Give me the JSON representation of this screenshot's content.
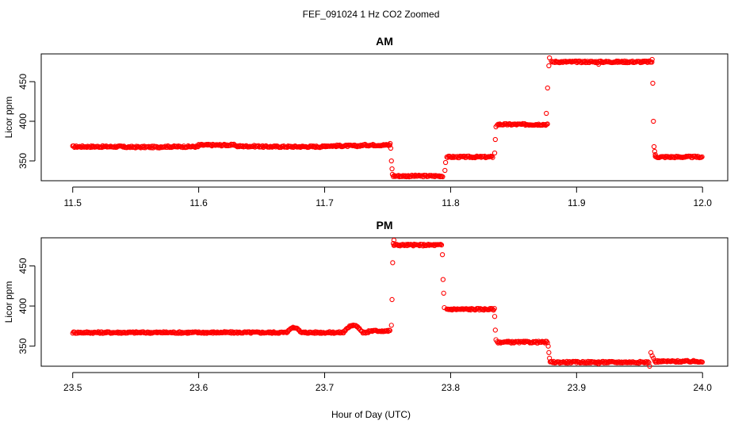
{
  "figure_title": "FEF_091024  1 Hz CO2 Zoomed",
  "xlabel": "Hour of Day (UTC)",
  "marker_color": "#ff0000",
  "chart_data": [
    {
      "type": "scatter",
      "title": "AM",
      "ylabel": "Licor ppm",
      "xlim": [
        11.475,
        12.02
      ],
      "ylim": [
        325,
        485
      ],
      "xticks": [
        "11.5",
        "11.6",
        "11.7",
        "11.8",
        "11.9",
        "12.0"
      ],
      "yticks": [
        "350",
        "400",
        "450"
      ],
      "segments": [
        {
          "x": [
            11.5,
            11.54
          ],
          "y": 368
        },
        {
          "x": [
            11.54,
            11.57
          ],
          "y": 367.5
        },
        {
          "x": [
            11.57,
            11.6
          ],
          "y": 368
        },
        {
          "x": [
            11.6,
            11.63
          ],
          "y": 370
        },
        {
          "x": [
            11.63,
            11.65
          ],
          "y": 368.5
        },
        {
          "x": [
            11.65,
            11.7
          ],
          "y": 368
        },
        {
          "x": [
            11.7,
            11.73
          ],
          "y": 369
        },
        {
          "x": [
            11.73,
            11.752
          ],
          "y": 370
        },
        {
          "x": [
            11.7545,
            11.794
          ],
          "y": 331
        },
        {
          "x": [
            11.797,
            11.834
          ],
          "y": 355
        },
        {
          "x": [
            11.837,
            11.877
          ],
          "y": 396
        },
        {
          "x": [
            11.88,
            11.96
          ],
          "y": 475
        },
        {
          "x": [
            11.9625,
            12.0
          ],
          "y": 355
        }
      ],
      "transitions": [
        [
          11.752,
          372
        ],
        [
          11.7525,
          366
        ],
        [
          11.753,
          350
        ],
        [
          11.7535,
          340
        ],
        [
          11.7538,
          333
        ],
        [
          11.7955,
          338
        ],
        [
          11.796,
          348
        ],
        [
          11.835,
          360
        ],
        [
          11.8355,
          377
        ],
        [
          11.836,
          393
        ],
        [
          11.876,
          410
        ],
        [
          11.877,
          442
        ],
        [
          11.878,
          470
        ],
        [
          11.8785,
          480
        ],
        [
          11.9175,
          472
        ],
        [
          11.96,
          478
        ],
        [
          11.9605,
          448
        ],
        [
          11.961,
          400
        ],
        [
          11.9615,
          368
        ],
        [
          11.962,
          362
        ],
        [
          11.9625,
          358
        ]
      ]
    },
    {
      "type": "scatter",
      "title": "PM",
      "ylabel": "Licor ppm",
      "xlim": [
        23.475,
        24.02
      ],
      "ylim": [
        325,
        485
      ],
      "xticks": [
        "23.5",
        "23.6",
        "23.7",
        "23.8",
        "23.9",
        "24.0"
      ],
      "yticks": [
        "350",
        "400",
        "450"
      ],
      "segments": [
        {
          "x": [
            23.5,
            23.67
          ],
          "y": 367
        },
        {
          "x": [
            23.685,
            23.715
          ],
          "y": 367
        },
        {
          "x": [
            23.735,
            23.752
          ],
          "y": 369
        },
        {
          "x": [
            23.755,
            23.793
          ],
          "y": 476
        },
        {
          "x": [
            23.797,
            23.835
          ],
          "y": 396
        },
        {
          "x": [
            23.837,
            23.877
          ],
          "y": 355
        },
        {
          "x": [
            23.879,
            23.958
          ],
          "y": 330
        },
        {
          "x": [
            23.962,
            24.0
          ],
          "y": 331
        }
      ],
      "bumps": [
        {
          "x": [
            23.67,
            23.685
          ],
          "peak": 373
        },
        {
          "x": [
            23.715,
            23.735
          ],
          "peak": 376
        }
      ],
      "transitions": [
        [
          23.753,
          376
        ],
        [
          23.7535,
          408
        ],
        [
          23.754,
          454
        ],
        [
          23.7545,
          478
        ],
        [
          23.755,
          482
        ],
        [
          23.7935,
          464
        ],
        [
          23.794,
          433
        ],
        [
          23.7945,
          416
        ],
        [
          23.795,
          398
        ],
        [
          23.835,
          387
        ],
        [
          23.8355,
          370
        ],
        [
          23.836,
          358
        ],
        [
          23.8775,
          350
        ],
        [
          23.878,
          342
        ],
        [
          23.8785,
          335
        ],
        [
          23.9175,
          328
        ],
        [
          23.958,
          325
        ],
        [
          23.959,
          342
        ],
        [
          23.96,
          338
        ],
        [
          23.961,
          335
        ]
      ]
    }
  ]
}
